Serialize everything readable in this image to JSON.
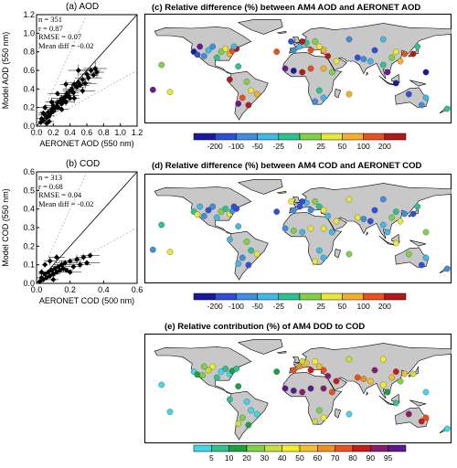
{
  "panel_a": {
    "title": "(a) AOD",
    "xlabel": "AERONET AOD (550 nm)",
    "ylabel": "Model AOD (550 nm)",
    "stats": [
      "n = 351",
      "r = 0.87",
      "RMSE = 0.07",
      "Mean diff = -0.02"
    ]
  },
  "panel_b": {
    "title": "(b) COD",
    "xlabel": "AERONET COD (500 nm)",
    "ylabel": "Model COD (550 nm)",
    "stats": [
      "n = 313",
      "r = 0.68",
      "RMSE = 0.04",
      "Mean diff = -0.02"
    ]
  },
  "panel_c": {
    "title": "(c) Relative difference (%) between AM4 AOD and AERONET AOD"
  },
  "panel_d": {
    "title": "(d) Relative difference (%) between AM4 COD and AERONET COD"
  },
  "panel_e": {
    "title": "(e) Relative contribution (%) of AM4 DOD to COD"
  },
  "colors": {
    "land": "#c8c8c8",
    "diff_scale": [
      "#1a1aa0",
      "#2f4fd8",
      "#3f8fe0",
      "#40b8e8",
      "#2fc28f",
      "#7fd246",
      "#e8e83a",
      "#f4b02a",
      "#e8501e",
      "#b01a1a",
      "#6a1a8a"
    ],
    "contrib_scale": [
      "#40d8e8",
      "#2fc28f",
      "#1fa040",
      "#7fd246",
      "#c8e03a",
      "#f0f028",
      "#f4c02a",
      "#f09020",
      "#e8501e",
      "#c81a1a",
      "#8a1a6a",
      "#5a1a8a"
    ]
  },
  "chart_data": [
    {
      "type": "scatter",
      "title": "(a) AOD",
      "xlabel": "AERONET AOD (550 nm)",
      "ylabel": "Model AOD (550 nm)",
      "xlim": [
        0,
        1.2
      ],
      "ylim": [
        0,
        1.2
      ],
      "xticks": [
        "0.0",
        "0.2",
        "0.4",
        "0.6",
        "0.8",
        "1.0",
        "1.2"
      ],
      "yticks": [
        "0.0",
        "0.2",
        "0.4",
        "0.6",
        "0.8",
        "1.0",
        "1.2"
      ],
      "points": [
        [
          0.05,
          0.04
        ],
        [
          0.06,
          0.08
        ],
        [
          0.08,
          0.06
        ],
        [
          0.1,
          0.12
        ],
        [
          0.12,
          0.09
        ],
        [
          0.14,
          0.15
        ],
        [
          0.15,
          0.11
        ],
        [
          0.17,
          0.14
        ],
        [
          0.18,
          0.18
        ],
        [
          0.2,
          0.16
        ],
        [
          0.2,
          0.22
        ],
        [
          0.22,
          0.19
        ],
        [
          0.24,
          0.21
        ],
        [
          0.25,
          0.25
        ],
        [
          0.26,
          0.2
        ],
        [
          0.28,
          0.27
        ],
        [
          0.3,
          0.24
        ],
        [
          0.3,
          0.3
        ],
        [
          0.32,
          0.28
        ],
        [
          0.34,
          0.31
        ],
        [
          0.35,
          0.26
        ],
        [
          0.36,
          0.35
        ],
        [
          0.38,
          0.33
        ],
        [
          0.4,
          0.38
        ],
        [
          0.4,
          0.3
        ],
        [
          0.42,
          0.4
        ],
        [
          0.44,
          0.36
        ],
        [
          0.45,
          0.45
        ],
        [
          0.48,
          0.42
        ],
        [
          0.5,
          0.47
        ],
        [
          0.52,
          0.44
        ],
        [
          0.55,
          0.5
        ],
        [
          0.58,
          0.46
        ],
        [
          0.6,
          0.56
        ],
        [
          0.62,
          0.52
        ],
        [
          0.65,
          0.6
        ],
        [
          0.68,
          0.55
        ],
        [
          0.7,
          0.62
        ],
        [
          0.72,
          0.58
        ],
        [
          0.1,
          0.2
        ],
        [
          0.15,
          0.05
        ],
        [
          0.25,
          0.35
        ],
        [
          0.3,
          0.18
        ],
        [
          0.45,
          0.3
        ],
        [
          0.5,
          0.6
        ],
        [
          0.35,
          0.45
        ],
        [
          0.55,
          0.38
        ],
        [
          0.08,
          0.14
        ],
        [
          0.12,
          0.03
        ],
        [
          0.18,
          0.26
        ]
      ]
    },
    {
      "type": "scatter",
      "title": "(b) COD",
      "xlabel": "AERONET COD (500 nm)",
      "ylabel": "Model COD (550 nm)",
      "xlim": [
        0,
        0.6
      ],
      "ylim": [
        0,
        0.6
      ],
      "xticks": [
        "0.0",
        "0.2",
        "0.4",
        "0.6"
      ],
      "yticks": [
        "0.0",
        "0.1",
        "0.2",
        "0.3",
        "0.4",
        "0.5",
        "0.6"
      ],
      "points": [
        [
          0.02,
          0.01
        ],
        [
          0.03,
          0.03
        ],
        [
          0.04,
          0.02
        ],
        [
          0.05,
          0.05
        ],
        [
          0.06,
          0.03
        ],
        [
          0.07,
          0.06
        ],
        [
          0.08,
          0.04
        ],
        [
          0.09,
          0.07
        ],
        [
          0.1,
          0.05
        ],
        [
          0.11,
          0.08
        ],
        [
          0.12,
          0.06
        ],
        [
          0.13,
          0.09
        ],
        [
          0.14,
          0.07
        ],
        [
          0.15,
          0.1
        ],
        [
          0.16,
          0.08
        ],
        [
          0.17,
          0.11
        ],
        [
          0.18,
          0.07
        ],
        [
          0.2,
          0.12
        ],
        [
          0.22,
          0.09
        ],
        [
          0.24,
          0.13
        ],
        [
          0.26,
          0.1
        ],
        [
          0.28,
          0.14
        ],
        [
          0.3,
          0.11
        ],
        [
          0.32,
          0.15
        ],
        [
          0.05,
          0.1
        ],
        [
          0.08,
          0.12
        ],
        [
          0.03,
          0.06
        ],
        [
          0.12,
          0.14
        ],
        [
          0.1,
          0.02
        ],
        [
          0.2,
          0.06
        ]
      ]
    },
    {
      "type": "map",
      "title": "(c) Relative difference (%) between AM4 AOD and AERONET AOD",
      "colorbar_labels": [
        "-200",
        "-100",
        "-50",
        "-25",
        "0",
        "25",
        "50",
        "100",
        "200"
      ]
    },
    {
      "type": "map",
      "title": "(d) Relative difference (%) between AM4 COD and AERONET COD",
      "colorbar_labels": [
        "-200",
        "-100",
        "-50",
        "-25",
        "0",
        "25",
        "50",
        "100",
        "200"
      ]
    },
    {
      "type": "map",
      "title": "(e) Relative contribution (%) of AM4 DOD to COD",
      "colorbar_labels": [
        "5",
        "10",
        "20",
        "30",
        "40",
        "50",
        "60",
        "70",
        "80",
        "90",
        "95"
      ]
    }
  ]
}
